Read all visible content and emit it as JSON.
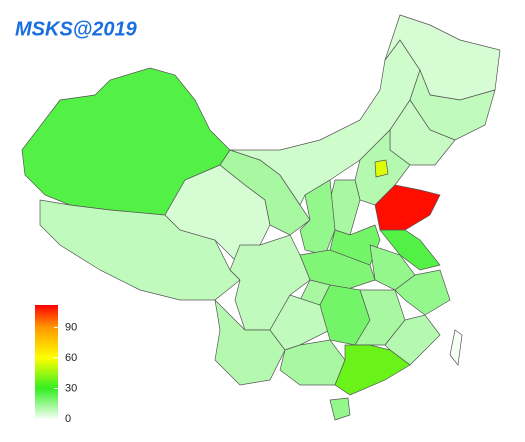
{
  "chart_data": {
    "type": "choropleth",
    "title": "MSKS@2019",
    "values": [
      25,
      8,
      5,
      12,
      6,
      5,
      8,
      7,
      10,
      55,
      12,
      15,
      110,
      20,
      25,
      15,
      18,
      8,
      12,
      10,
      8,
      20,
      12,
      15,
      10,
      12,
      38,
      15,
      0
    ],
    "colorscale": [
      [
        0,
        "#f5fff5"
      ],
      [
        30,
        "#33ee22"
      ],
      [
        60,
        "#ffff00"
      ],
      [
        90,
        "#ff9900"
      ],
      [
        112,
        "#ff0000"
      ]
    ],
    "clim": [
      0,
      112
    ],
    "cticks": [
      0,
      30,
      60,
      90
    ]
  }
}
